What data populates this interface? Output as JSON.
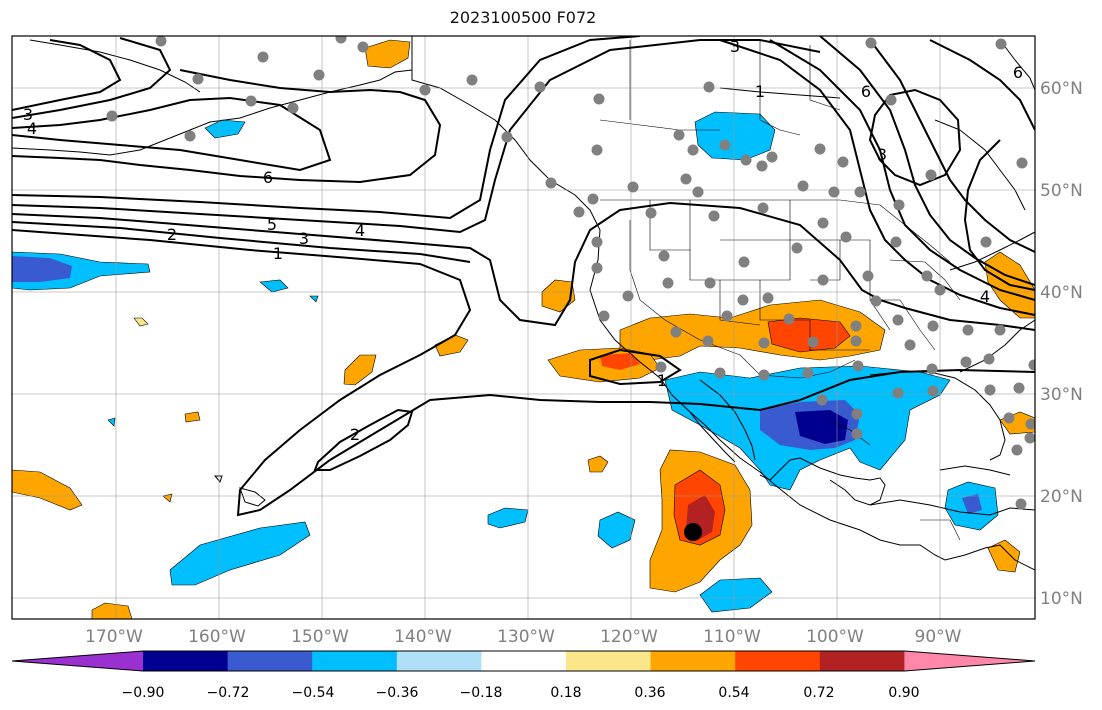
{
  "title": "2023100500 F072",
  "map": {
    "lon_labels": [
      "170°W",
      "160°W",
      "150°W",
      "140°W",
      "130°W",
      "120°W",
      "110°W",
      "100°W",
      "90°W"
    ],
    "lat_labels": [
      "60°N",
      "50°N",
      "40°N",
      "30°N",
      "20°N",
      "10°N"
    ],
    "contour_labels": [
      "3",
      "4",
      "6",
      "5",
      "4",
      "2",
      "3",
      "1",
      "2",
      "3",
      "1",
      "6",
      "3",
      "4",
      "1",
      "6"
    ],
    "grid": true
  },
  "colorbar": {
    "tick_labels": [
      "−0.90",
      "−0.72",
      "−0.54",
      "−0.36",
      "−0.18",
      "0.18",
      "0.36",
      "0.54",
      "0.72",
      "0.90"
    ],
    "colors": [
      "#9b30d0",
      "#000090",
      "#3a5bd0",
      "#00bfff",
      "#b0e0f8",
      "#ffffff",
      "#fbe68a",
      "#ffa500",
      "#ff4500",
      "#b22222",
      "#ff88aa"
    ]
  },
  "colors": {
    "station_dot": "#808080",
    "contour": "#000000",
    "coast": "#000000"
  }
}
